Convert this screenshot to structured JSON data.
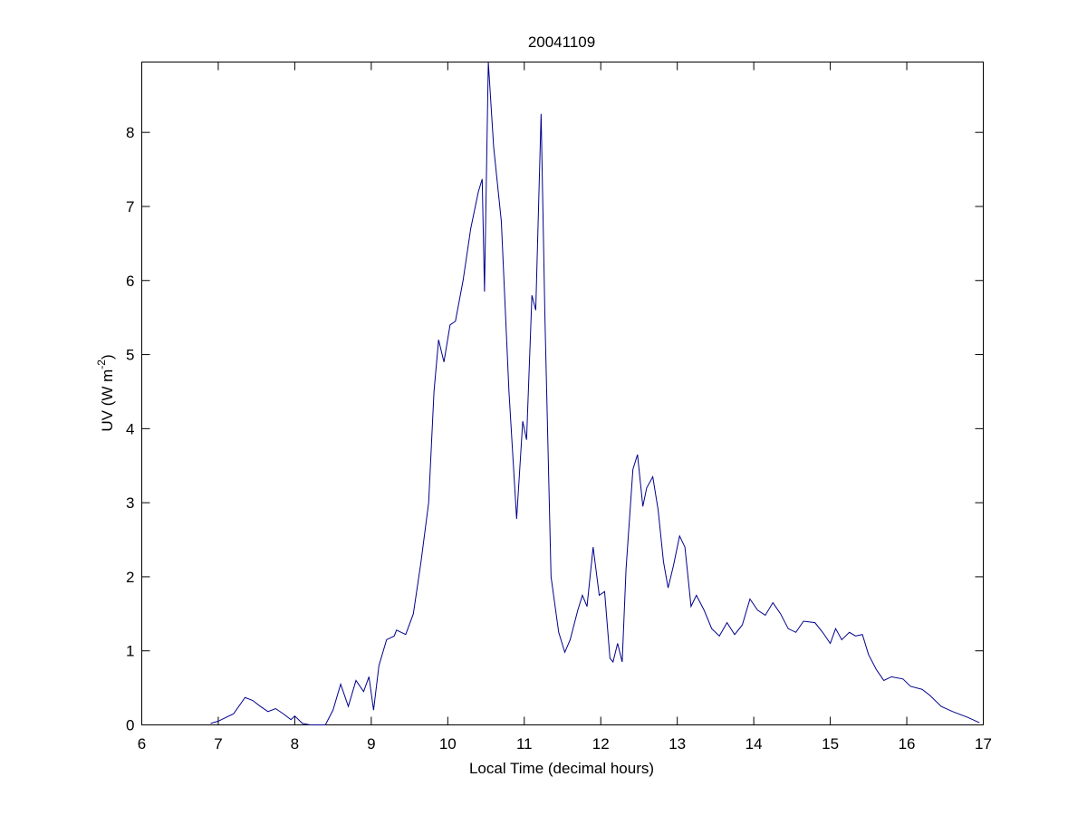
{
  "chart_data": {
    "type": "line",
    "title": "20041109",
    "xlabel": "Local Time (decimal hours)",
    "ylabel": [
      "UV (W m",
      "-2",
      ")"
    ],
    "xlim": [
      6,
      17
    ],
    "xticks": [
      6,
      7,
      8,
      9,
      10,
      11,
      12,
      13,
      14,
      15,
      16,
      17
    ],
    "ylim": [
      0,
      8.95
    ],
    "yticks": [
      0,
      1,
      2,
      3,
      4,
      5,
      6,
      7,
      8
    ],
    "x": [
      6.9,
      7.0,
      7.2,
      7.35,
      7.45,
      7.55,
      7.65,
      7.75,
      7.85,
      7.95,
      8.0,
      8.1,
      8.2,
      8.4,
      8.5,
      8.6,
      8.7,
      8.8,
      8.9,
      8.97,
      9.03,
      9.1,
      9.2,
      9.3,
      9.33,
      9.45,
      9.55,
      9.65,
      9.75,
      9.82,
      9.88,
      9.95,
      10.03,
      10.1,
      10.2,
      10.3,
      10.4,
      10.45,
      10.48,
      10.53,
      10.6,
      10.7,
      10.8,
      10.9,
      10.98,
      11.03,
      11.1,
      11.15,
      11.22,
      11.27,
      11.35,
      11.45,
      11.53,
      11.6,
      11.7,
      11.76,
      11.82,
      11.9,
      11.98,
      12.05,
      12.12,
      12.16,
      12.22,
      12.28,
      12.33,
      12.42,
      12.48,
      12.55,
      12.6,
      12.68,
      12.75,
      12.82,
      12.88,
      12.95,
      13.03,
      13.1,
      13.18,
      13.25,
      13.35,
      13.45,
      13.55,
      13.65,
      13.75,
      13.85,
      13.95,
      14.05,
      14.15,
      14.25,
      14.35,
      14.45,
      14.55,
      14.65,
      14.8,
      14.9,
      15.0,
      15.07,
      15.15,
      15.25,
      15.33,
      15.42,
      15.5,
      15.6,
      15.7,
      15.8,
      15.95,
      16.05,
      16.2,
      16.3,
      16.45,
      16.6,
      16.8,
      16.95
    ],
    "series": [
      {
        "color": "#00008b",
        "values": [
          0.02,
          0.05,
          0.15,
          0.37,
          0.33,
          0.25,
          0.18,
          0.22,
          0.15,
          0.07,
          0.12,
          0.02,
          0.0,
          0.0,
          0.2,
          0.55,
          0.25,
          0.6,
          0.45,
          0.65,
          0.2,
          0.8,
          1.15,
          1.2,
          1.28,
          1.22,
          1.5,
          2.2,
          3.0,
          4.5,
          5.2,
          4.9,
          5.4,
          5.45,
          6.0,
          6.7,
          7.2,
          7.37,
          5.85,
          8.95,
          7.8,
          6.8,
          4.5,
          2.78,
          4.1,
          3.85,
          5.8,
          5.6,
          8.25,
          5.5,
          2.0,
          1.25,
          0.98,
          1.15,
          1.55,
          1.75,
          1.6,
          2.4,
          1.75,
          1.8,
          0.9,
          0.85,
          1.1,
          0.85,
          2.1,
          3.45,
          3.65,
          2.95,
          3.2,
          3.35,
          2.9,
          2.2,
          1.85,
          2.15,
          2.55,
          2.4,
          1.6,
          1.75,
          1.55,
          1.3,
          1.2,
          1.38,
          1.22,
          1.35,
          1.7,
          1.55,
          1.48,
          1.65,
          1.5,
          1.3,
          1.25,
          1.4,
          1.38,
          1.25,
          1.1,
          1.3,
          1.15,
          1.25,
          1.2,
          1.22,
          0.95,
          0.75,
          0.6,
          0.65,
          0.62,
          0.52,
          0.48,
          0.4,
          0.25,
          0.18,
          0.1,
          0.03
        ]
      }
    ]
  }
}
